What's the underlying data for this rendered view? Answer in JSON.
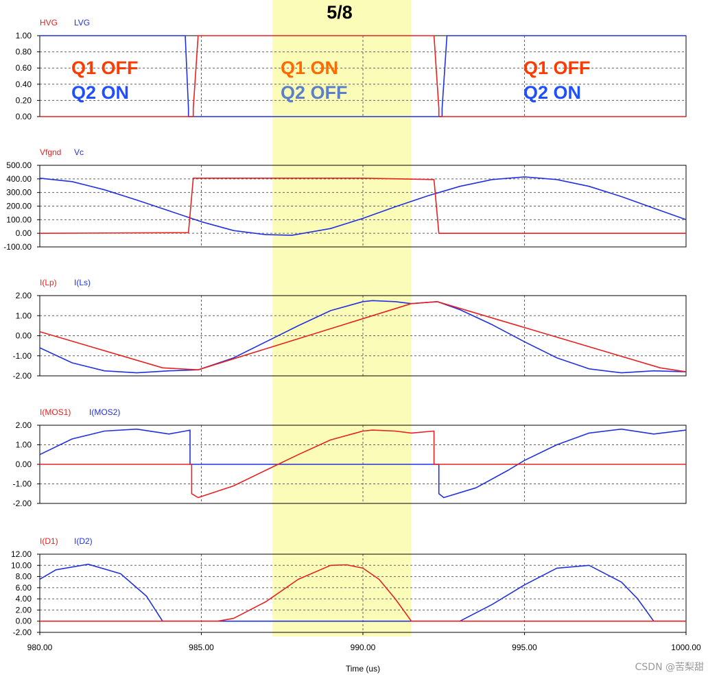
{
  "colors": {
    "series_a": "#e82020",
    "series_b": "#2030e0",
    "highlight": "#fbfba8"
  },
  "annotations": {
    "top_label": "5/8",
    "left_state": [
      "Q1 OFF",
      "Q2 ON"
    ],
    "middle_state": [
      "Q1 ON",
      "Q2 OFF"
    ],
    "right_state": [
      "Q1 OFF",
      "Q2 ON"
    ],
    "state_colors": {
      "q1_off": "#ff3a00",
      "q2_on": "#1f4fff",
      "q1_on": "#ff6a00",
      "q2_off": "#5b7fc8"
    },
    "watermark": "CSDN @苦梨甜"
  },
  "chart_data": {
    "type": "line",
    "x_axis": {
      "xlabel": "Time (us)",
      "xlim": [
        980,
        1000
      ],
      "ticks": [
        980,
        985,
        990,
        995,
        1000
      ],
      "tick_labels": [
        "980.00",
        "985.00",
        "990.00",
        "995.00",
        "1000.00"
      ]
    },
    "highlight_band": {
      "x_from": 987.2,
      "x_to": 991.5
    },
    "panels": [
      {
        "legend": [
          "HVG",
          "LVG"
        ],
        "ylim": [
          0,
          1
        ],
        "ticks": [
          0,
          0.2,
          0.4,
          0.6,
          0.8,
          1.0
        ],
        "tick_labels": [
          "0.00",
          "0.20",
          "0.40",
          "0.60",
          "0.80",
          "1.00"
        ],
        "series": [
          {
            "name": "HVG",
            "color": "red",
            "x": [
              980,
              984.75,
              984.75,
              984.9,
              992.2,
              992.35,
              992.35,
              1000
            ],
            "y": [
              0,
              0,
              0.1,
              1,
              1,
              0.1,
              0,
              0
            ]
          },
          {
            "name": "LVG",
            "color": "blue",
            "x": [
              980,
              984.5,
              984.6,
              984.6,
              992.45,
              992.45,
              992.6,
              1000
            ],
            "y": [
              1,
              1,
              0.1,
              0,
              0,
              0.1,
              1,
              1
            ]
          }
        ]
      },
      {
        "legend": [
          "Vfgnd",
          "Vc"
        ],
        "ylim": [
          -100,
          500
        ],
        "ticks": [
          -100,
          0,
          100,
          200,
          300,
          400,
          500
        ],
        "tick_labels": [
          "-100.00",
          "0.00",
          "100.00",
          "200.00",
          "300.00",
          "400.00",
          "500.00"
        ],
        "series": [
          {
            "name": "Vfgnd",
            "color": "red",
            "x": [
              980,
              984.6,
              984.75,
              990,
              992.2,
              992.35,
              1000
            ],
            "y": [
              0,
              5,
              405,
              405,
              395,
              0,
              0
            ]
          },
          {
            "name": "Vc",
            "color": "blue",
            "x": [
              980,
              981,
              982,
              983,
              984,
              985,
              986,
              987,
              987.8,
              989,
              990,
              991,
              992,
              993,
              994,
              995,
              996,
              997,
              998,
              999,
              1000
            ],
            "y": [
              405,
              380,
              320,
              245,
              165,
              85,
              20,
              -10,
              -15,
              35,
              110,
              195,
              275,
              345,
              395,
              415,
              395,
              345,
              270,
              185,
              100
            ]
          }
        ]
      },
      {
        "legend": [
          "I(Lp)",
          "I(Ls)"
        ],
        "ylim": [
          -2,
          2
        ],
        "ticks": [
          -2,
          -1,
          0,
          1,
          2
        ],
        "tick_labels": [
          "-2.00",
          "-1.00",
          "0.00",
          "1.00",
          "2.00"
        ],
        "series": [
          {
            "name": "I(Lp)",
            "color": "red",
            "x": [
              980,
              983.8,
              984.9,
              991.5,
              992.3,
              999.2,
              1000
            ],
            "y": [
              0.2,
              -1.6,
              -1.7,
              1.6,
              1.7,
              -1.6,
              -1.8
            ]
          },
          {
            "name": "I(Ls)",
            "color": "blue",
            "x": [
              980,
              981,
              982,
              983,
              984,
              984.9,
              986,
              987,
              988,
              989,
              990,
              990.3,
              991,
              991.5,
              992.3,
              993,
              994,
              995,
              996,
              997,
              998,
              999,
              1000
            ],
            "y": [
              -0.6,
              -1.35,
              -1.75,
              -1.85,
              -1.75,
              -1.7,
              -1.1,
              -0.3,
              0.5,
              1.25,
              1.7,
              1.75,
              1.7,
              1.6,
              1.7,
              1.3,
              0.55,
              -0.3,
              -1.1,
              -1.65,
              -1.85,
              -1.75,
              -1.8
            ]
          }
        ]
      },
      {
        "legend": [
          "I(MOS1)",
          "I(MOS2)"
        ],
        "ylim": [
          -2,
          2
        ],
        "ticks": [
          -2,
          -1,
          0,
          1,
          2
        ],
        "tick_labels": [
          "-2.00",
          "-1.00",
          "0.00",
          "1.00",
          "2.00"
        ],
        "series": [
          {
            "name": "I(MOS1)",
            "color": "red",
            "x": [
              980,
              984.7,
              984.7,
              984.9,
              986,
              987,
              988,
              989,
              990,
              990.3,
              991,
              991.5,
              992.2,
              992.2,
              992.3,
              1000
            ],
            "y": [
              0,
              0,
              -1.5,
              -1.7,
              -1.1,
              -0.3,
              0.5,
              1.25,
              1.7,
              1.75,
              1.7,
              1.6,
              1.7,
              0,
              0,
              0
            ]
          },
          {
            "name": "I(MOS2)",
            "color": "blue",
            "x": [
              980,
              981,
              982,
              983,
              984,
              984.5,
              984.65,
              984.65,
              992.35,
              992.35,
              992.5,
              993.5,
              994.5,
              995,
              996,
              997,
              998,
              999,
              1000
            ],
            "y": [
              0.5,
              1.3,
              1.7,
              1.8,
              1.55,
              1.7,
              1.75,
              0,
              0,
              -1.5,
              -1.7,
              -1.2,
              -0.3,
              0.2,
              1.0,
              1.6,
              1.8,
              1.55,
              1.75
            ]
          }
        ]
      },
      {
        "legend": [
          "I(D1)",
          "I(D2)"
        ],
        "ylim": [
          -2,
          12
        ],
        "ticks": [
          -2,
          0,
          2,
          4,
          6,
          8,
          10,
          12
        ],
        "tick_labels": [
          "-2.00",
          "0.00",
          "2.00",
          "4.00",
          "6.00",
          "8.00",
          "10.00",
          "12.00"
        ],
        "series": [
          {
            "name": "I(D1)",
            "color": "red",
            "x": [
              980,
              985.5,
              986,
              987,
              988,
              989,
              989.5,
              990,
              990.5,
              991,
              991.5,
              1000
            ],
            "y": [
              0,
              0,
              0.5,
              3.5,
              7.5,
              10.0,
              10.1,
              9.5,
              7.5,
              4.0,
              0,
              0
            ]
          },
          {
            "name": "I(D2)",
            "color": "blue",
            "x": [
              980,
              980.5,
              981.5,
              982.5,
              983.3,
              983.8,
              993.0,
              994,
              995,
              996,
              997,
              998,
              998.5,
              999,
              1000
            ],
            "y": [
              7.5,
              9.2,
              10.2,
              8.5,
              4.5,
              0,
              0,
              3.0,
              6.5,
              9.5,
              10.0,
              7.0,
              4.0,
              0,
              0
            ]
          }
        ]
      }
    ]
  }
}
